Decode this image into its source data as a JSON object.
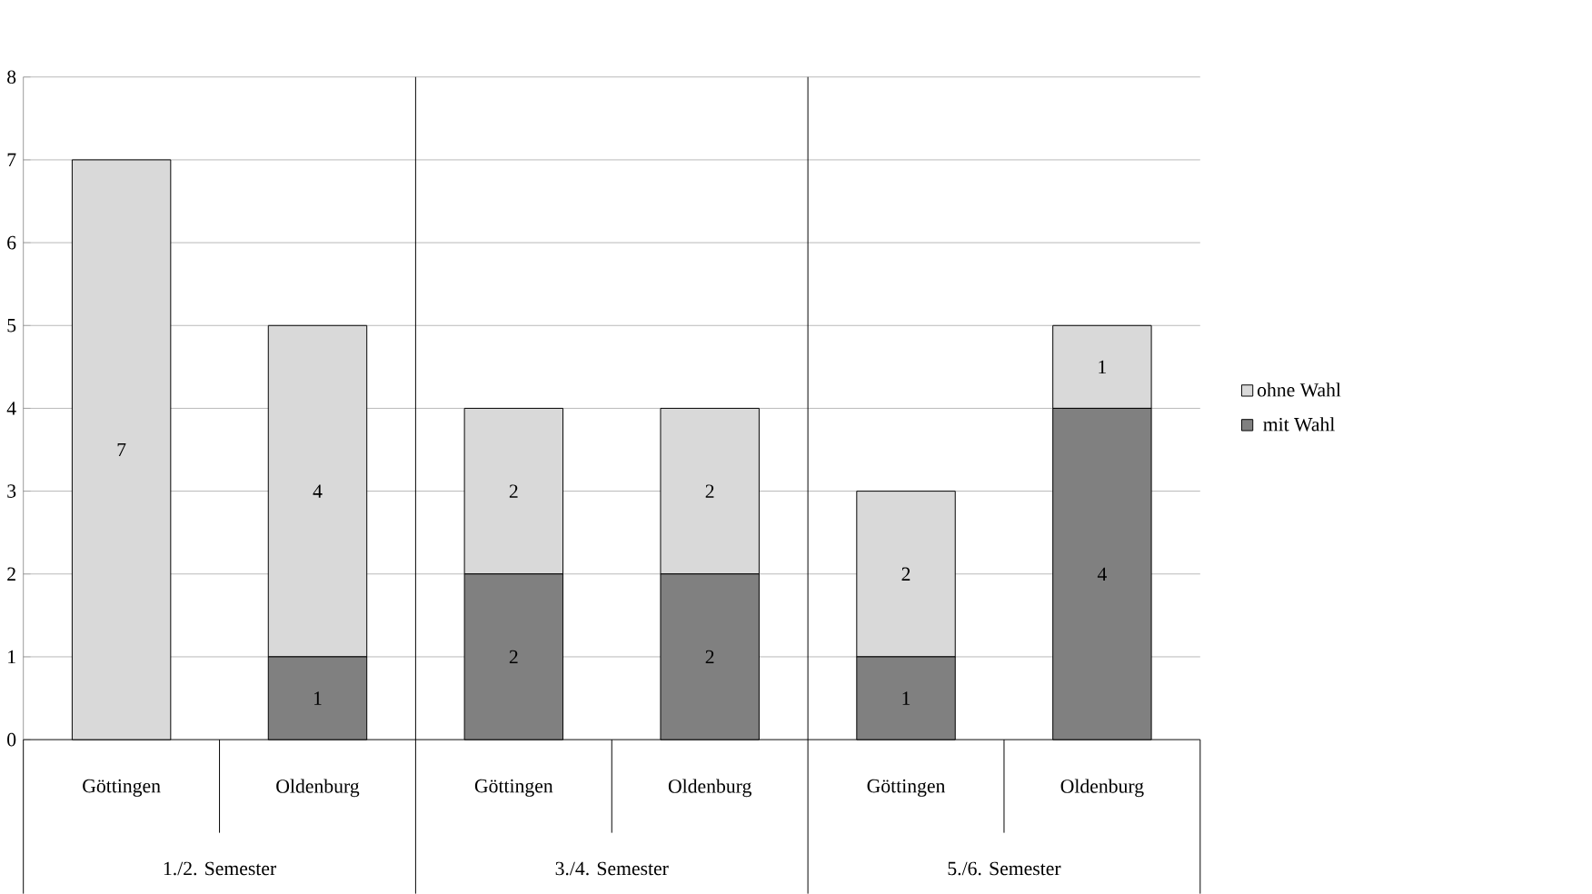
{
  "chart_data": {
    "type": "bar",
    "stacked": true,
    "categories": [
      "Göttingen",
      "Oldenburg",
      "Göttingen",
      "Oldenburg",
      "Göttingen",
      "Oldenburg"
    ],
    "series": [
      {
        "name": "mit Wahl",
        "color": "#808080",
        "values": [
          0,
          1,
          2,
          2,
          1,
          4
        ],
        "value_labels": [
          null,
          "1",
          "2",
          "2",
          "1",
          "4"
        ]
      },
      {
        "name": "ohne Wahl",
        "color": "#d9d9d9",
        "values": [
          7,
          4,
          2,
          2,
          2,
          1
        ],
        "value_labels": [
          "7",
          "4",
          "2",
          "2",
          "2",
          "1"
        ]
      }
    ],
    "annotations": [
      "1./2. Semester",
      "3./4. Semester",
      "5./6. Semester"
    ],
    "ylim": [
      0,
      8
    ],
    "yticks": [
      0,
      1,
      2,
      3,
      4,
      5,
      6,
      7,
      8
    ],
    "grid": "y",
    "legend": "right"
  }
}
